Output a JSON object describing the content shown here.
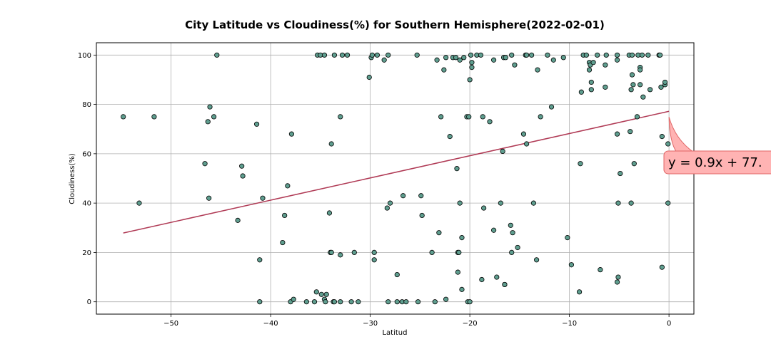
{
  "chart_data": {
    "type": "scatter",
    "title": "City Latitude vs Cloudiness(%) for Southern Hemisphere(2022-02-01)",
    "xlabel": "Latitud",
    "ylabel": "Cloudiness(%)",
    "xlim": [
      -57.5,
      2.5
    ],
    "ylim": [
      -5,
      105
    ],
    "xticks": [
      -50,
      -40,
      -30,
      -20,
      -10,
      0
    ],
    "yticks": [
      0,
      20,
      40,
      60,
      80,
      100
    ],
    "grid": true,
    "marker_color": "#5f9e8f",
    "line_color": "#b03a55",
    "annotation": {
      "text": "y = 0.9x + 77.",
      "bg_color": "#ffb3b3",
      "border_color": "#e06666"
    },
    "regression": {
      "slope": 0.9,
      "intercept": 77.2,
      "x_range": [
        -54.8,
        0
      ]
    },
    "points": [
      [
        -54.8,
        75
      ],
      [
        -53.2,
        40
      ],
      [
        -51.7,
        75
      ],
      [
        -46.6,
        56
      ],
      [
        -46.3,
        73
      ],
      [
        -46.2,
        42
      ],
      [
        -46.1,
        79
      ],
      [
        -45.7,
        75
      ],
      [
        -45.4,
        100
      ],
      [
        -43.3,
        33
      ],
      [
        -42.9,
        55
      ],
      [
        -42.8,
        51
      ],
      [
        -41.4,
        72
      ],
      [
        -41.1,
        17
      ],
      [
        -41.1,
        0
      ],
      [
        -40.8,
        42
      ],
      [
        -38.8,
        24
      ],
      [
        -38.6,
        35
      ],
      [
        -38.3,
        47
      ],
      [
        -38.0,
        0
      ],
      [
        -37.9,
        68
      ],
      [
        -37.7,
        1
      ],
      [
        -36.4,
        0
      ],
      [
        -35.6,
        0
      ],
      [
        -35.4,
        4
      ],
      [
        -35.3,
        100
      ],
      [
        -35.0,
        100
      ],
      [
        -34.9,
        3
      ],
      [
        -34.6,
        1
      ],
      [
        -34.6,
        100
      ],
      [
        -34.5,
        0
      ],
      [
        -34.4,
        3
      ],
      [
        -34.1,
        36
      ],
      [
        -34.0,
        20
      ],
      [
        -33.9,
        64
      ],
      [
        -33.9,
        20
      ],
      [
        -33.7,
        0
      ],
      [
        -33.6,
        0
      ],
      [
        -33.6,
        100
      ],
      [
        -33.0,
        75
      ],
      [
        -33.0,
        19
      ],
      [
        -33.0,
        0
      ],
      [
        -32.8,
        100
      ],
      [
        -32.3,
        100
      ],
      [
        -31.9,
        0
      ],
      [
        -31.6,
        20
      ],
      [
        -31.2,
        0
      ],
      [
        -30.1,
        91
      ],
      [
        -29.9,
        99
      ],
      [
        -29.8,
        100
      ],
      [
        -29.6,
        20
      ],
      [
        -29.6,
        17
      ],
      [
        -29.3,
        100
      ],
      [
        -28.6,
        98
      ],
      [
        -28.3,
        38
      ],
      [
        -28.2,
        100
      ],
      [
        -28.2,
        0
      ],
      [
        -28.0,
        40
      ],
      [
        -27.3,
        11
      ],
      [
        -27.3,
        0
      ],
      [
        -26.8,
        0
      ],
      [
        -26.7,
        43
      ],
      [
        -26.4,
        0
      ],
      [
        -25.3,
        100
      ],
      [
        -25.2,
        0
      ],
      [
        -24.9,
        43
      ],
      [
        -24.8,
        35
      ],
      [
        -23.8,
        20
      ],
      [
        -23.5,
        0
      ],
      [
        -23.3,
        98
      ],
      [
        -23.1,
        28
      ],
      [
        -22.9,
        75
      ],
      [
        -22.6,
        94
      ],
      [
        -22.4,
        99
      ],
      [
        -22.4,
        1
      ],
      [
        -22.0,
        67
      ],
      [
        -21.7,
        99
      ],
      [
        -21.4,
        99
      ],
      [
        -21.3,
        54
      ],
      [
        -21.2,
        20
      ],
      [
        -21.2,
        12
      ],
      [
        -21.1,
        20
      ],
      [
        -21.0,
        40
      ],
      [
        -21.0,
        98
      ],
      [
        -20.8,
        5
      ],
      [
        -20.8,
        26
      ],
      [
        -20.6,
        99
      ],
      [
        -20.3,
        75
      ],
      [
        -20.2,
        0
      ],
      [
        -20.1,
        75
      ],
      [
        -20.0,
        0
      ],
      [
        -20.0,
        90
      ],
      [
        -19.9,
        100
      ],
      [
        -19.8,
        97
      ],
      [
        -19.8,
        95
      ],
      [
        -19.3,
        100
      ],
      [
        -18.9,
        100
      ],
      [
        -18.8,
        9
      ],
      [
        -18.7,
        75
      ],
      [
        -18.6,
        38
      ],
      [
        -18.0,
        73
      ],
      [
        -17.6,
        98
      ],
      [
        -17.6,
        29
      ],
      [
        -17.3,
        10
      ],
      [
        -16.9,
        40
      ],
      [
        -16.7,
        61
      ],
      [
        -16.6,
        99
      ],
      [
        -16.4,
        99
      ],
      [
        -16.5,
        7
      ],
      [
        -16.5,
        7
      ],
      [
        -15.9,
        31
      ],
      [
        -15.8,
        100
      ],
      [
        -15.8,
        20
      ],
      [
        -15.7,
        28
      ],
      [
        -15.5,
        96
      ],
      [
        -15.2,
        22
      ],
      [
        -14.6,
        68
      ],
      [
        -14.4,
        100
      ],
      [
        -14.3,
        64
      ],
      [
        -14.3,
        100
      ],
      [
        -13.8,
        100
      ],
      [
        -13.6,
        40
      ],
      [
        -13.3,
        17
      ],
      [
        -13.2,
        94
      ],
      [
        -12.9,
        75
      ],
      [
        -12.2,
        100
      ],
      [
        -11.8,
        79
      ],
      [
        -11.6,
        98
      ],
      [
        -10.6,
        99
      ],
      [
        -10.2,
        26
      ],
      [
        -9.8,
        15
      ],
      [
        -9.0,
        4
      ],
      [
        -8.9,
        56
      ],
      [
        -8.8,
        85
      ],
      [
        -8.6,
        100
      ],
      [
        -8.3,
        100
      ],
      [
        -8.0,
        94
      ],
      [
        -8.0,
        97
      ],
      [
        -7.9,
        96
      ],
      [
        -7.8,
        86
      ],
      [
        -7.8,
        89
      ],
      [
        -7.6,
        97
      ],
      [
        -7.2,
        100
      ],
      [
        -6.9,
        13
      ],
      [
        -6.4,
        87
      ],
      [
        -6.4,
        96
      ],
      [
        -6.3,
        100
      ],
      [
        -5.2,
        98
      ],
      [
        -5.2,
        100
      ],
      [
        -5.2,
        68
      ],
      [
        -5.1,
        40
      ],
      [
        -5.1,
        10
      ],
      [
        -5.2,
        8
      ],
      [
        -4.9,
        52
      ],
      [
        -4.0,
        100
      ],
      [
        -3.9,
        69
      ],
      [
        -3.8,
        86
      ],
      [
        -3.8,
        40
      ],
      [
        -3.7,
        100
      ],
      [
        -3.7,
        92
      ],
      [
        -3.6,
        88
      ],
      [
        -3.5,
        56
      ],
      [
        -3.2,
        75
      ],
      [
        -3.1,
        100
      ],
      [
        -2.9,
        95
      ],
      [
        -2.9,
        94
      ],
      [
        -2.9,
        88
      ],
      [
        -2.7,
        100
      ],
      [
        -2.6,
        83
      ],
      [
        -2.1,
        100
      ],
      [
        -1.9,
        86
      ],
      [
        -1.0,
        100
      ],
      [
        -0.9,
        100
      ],
      [
        -0.8,
        87
      ],
      [
        -0.7,
        67
      ],
      [
        -0.7,
        14
      ],
      [
        -0.4,
        88
      ],
      [
        -0.4,
        89
      ],
      [
        -0.1,
        64
      ],
      [
        -0.1,
        40
      ]
    ]
  }
}
